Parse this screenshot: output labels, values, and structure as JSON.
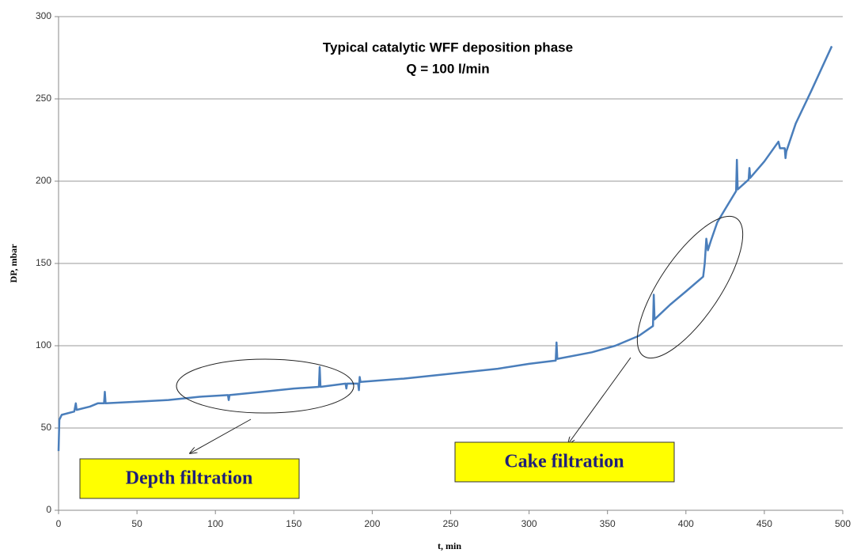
{
  "chart_data": {
    "type": "line",
    "title": "Typical catalytic WFF deposition phase",
    "subtitle": "Q = 100 l/min",
    "x_label": "t, min",
    "y_label": "DP, mbar",
    "annotations": [
      "Depth filtration",
      "Cake filtration"
    ],
    "x": [
      0,
      0.5,
      2,
      10,
      11,
      11.5,
      20,
      25,
      29,
      29.5,
      30,
      50,
      70,
      90,
      108,
      108.5,
      109,
      130,
      150,
      166,
      166.5,
      167,
      183,
      183.5,
      184,
      191,
      191.5,
      192,
      192.5,
      220,
      250,
      280,
      300,
      317,
      317.5,
      318,
      340,
      355,
      370,
      379,
      379.5,
      380,
      390,
      400,
      411,
      412,
      413,
      414,
      416,
      420,
      425,
      432,
      432.5,
      433,
      440,
      440.5,
      441,
      450,
      459,
      460,
      463,
      463.5,
      464,
      470,
      480,
      493
    ],
    "series": [
      {
        "color": "#4a7ebb",
        "values": [
          36,
          55,
          58,
          60,
          65,
          61,
          63,
          65,
          65,
          72,
          65,
          66,
          67,
          69,
          70,
          67,
          70,
          72,
          74,
          75,
          87,
          75,
          77,
          74,
          77,
          77,
          73,
          81,
          78,
          80,
          83,
          86,
          89,
          91,
          102,
          92,
          96,
          100,
          106,
          112,
          131,
          116,
          125,
          133,
          142,
          150,
          165,
          158,
          164,
          175,
          183,
          194,
          213,
          195,
          201,
          208,
          202,
          212,
          224,
          220,
          220,
          214,
          218,
          235,
          255,
          282
        ]
      }
    ],
    "xlim": [
      0,
      500
    ],
    "xticks": [
      0,
      50,
      100,
      150,
      200,
      250,
      300,
      350,
      400,
      450,
      500
    ],
    "ylim": [
      0,
      300
    ],
    "yticks": [
      0,
      50,
      100,
      150,
      200,
      250,
      300
    ],
    "grid": true
  }
}
